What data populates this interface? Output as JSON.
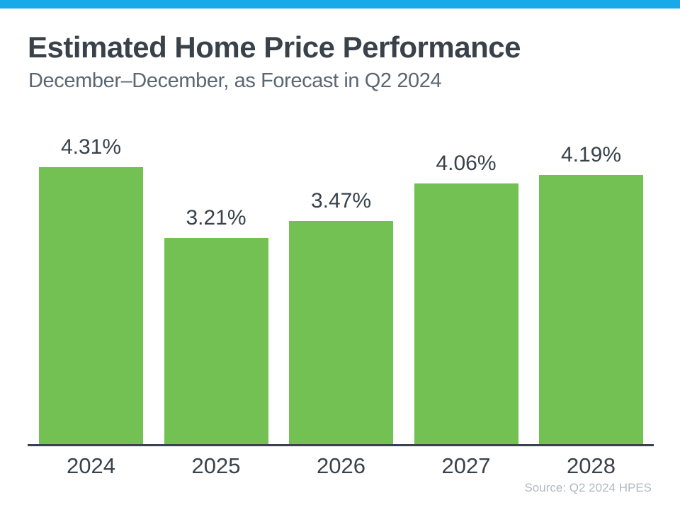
{
  "colors": {
    "accent_bar": "#18A9E9",
    "bar_fill": "#73C053",
    "title_text": "#39424A",
    "subtitle_text": "#5B6771",
    "label_text": "#39424A",
    "axis_line": "#39424A",
    "source_text": "#AFB9BF"
  },
  "header": {
    "title": "Estimated Home Price Performance",
    "subtitle": "December–December, as Forecast in Q2 2024"
  },
  "chart_data": {
    "type": "bar",
    "categories": [
      "2024",
      "2025",
      "2026",
      "2027",
      "2028"
    ],
    "values": [
      4.31,
      3.21,
      3.47,
      4.06,
      4.19
    ],
    "value_labels": [
      "4.31%",
      "3.21%",
      "3.47%",
      "4.06%",
      "4.19%"
    ],
    "title": "Estimated Home Price Performance",
    "subtitle": "December–December, as Forecast in Q2 2024",
    "xlabel": "",
    "ylabel": "",
    "ylim": [
      0,
      4.71
    ],
    "grid": false,
    "legend": false,
    "bar_color": "#73C053"
  },
  "footer": {
    "source": "Source: Q2 2024 HPES"
  }
}
